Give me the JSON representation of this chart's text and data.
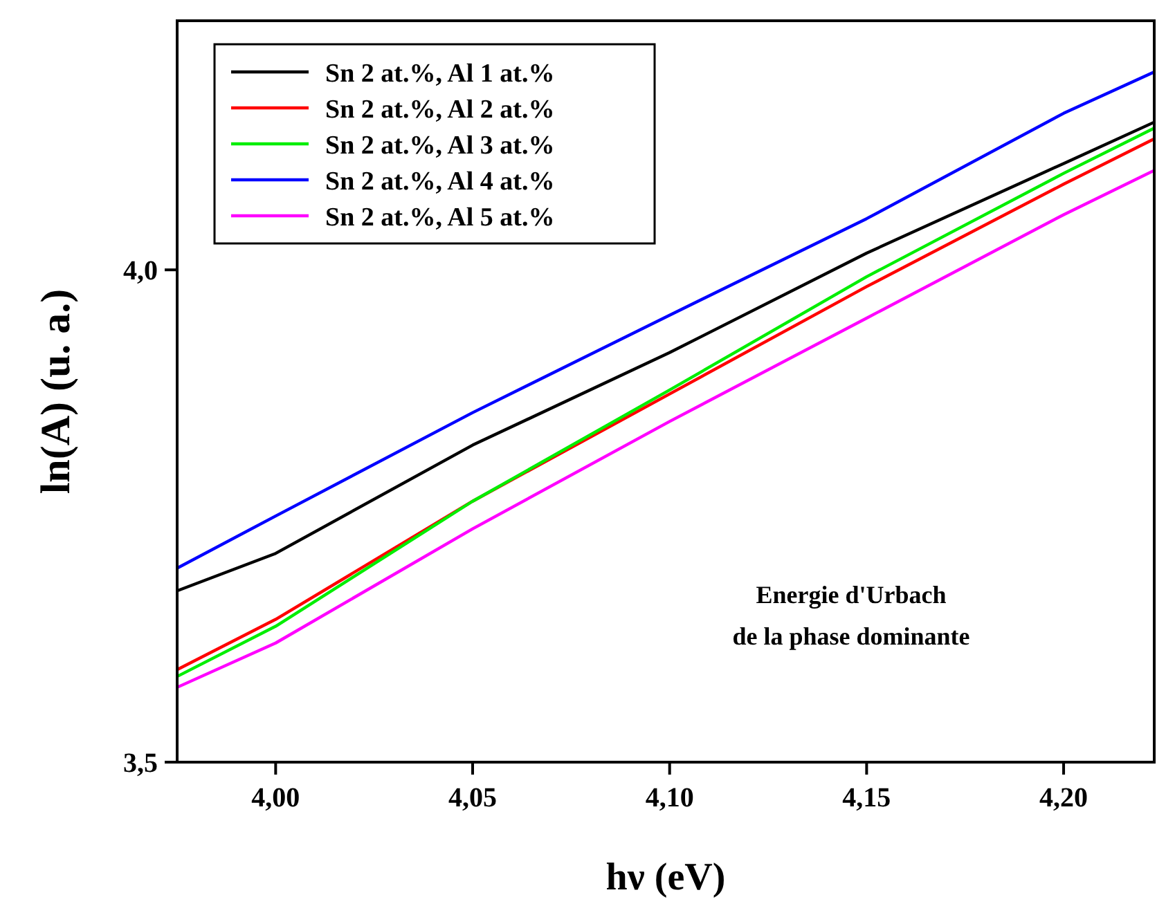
{
  "chart_data": {
    "type": "line",
    "xlabel": "hν (eV)",
    "ylabel": "ln(A) (u. a.)",
    "xlim": [
      3.975,
      4.223
    ],
    "ylim": [
      3.5,
      4.253
    ],
    "xticks": [
      {
        "value": 4.0,
        "label": "4,00"
      },
      {
        "value": 4.05,
        "label": "4,05"
      },
      {
        "value": 4.1,
        "label": "4,10"
      },
      {
        "value": 4.15,
        "label": "4,15"
      },
      {
        "value": 4.2,
        "label": "4,20"
      }
    ],
    "yticks": [
      {
        "value": 3.5,
        "label": "3,5"
      },
      {
        "value": 4.0,
        "label": "4,0"
      }
    ],
    "legend": "top left",
    "grid": false,
    "line_style": "solid",
    "annotations": [
      "Energie d'Urbach\nde la phase dominante"
    ],
    "x": [
      3.975,
      4.0,
      4.05,
      4.1,
      4.15,
      4.2,
      4.223
    ],
    "series": [
      {
        "name": "Sn 2 at.%, Al 1 at.%",
        "color": "#000000",
        "values": [
          3.674,
          3.712,
          3.822,
          3.916,
          4.017,
          4.108,
          4.15
        ]
      },
      {
        "name": "Sn 2 at.%, Al 2 at.%",
        "color": "#ff0000",
        "values": [
          3.594,
          3.645,
          3.765,
          3.874,
          3.983,
          4.087,
          4.133
        ]
      },
      {
        "name": "Sn 2 at.%, Al 3 at.%",
        "color": "#00ee00",
        "values": [
          3.587,
          3.638,
          3.765,
          3.878,
          3.993,
          4.098,
          4.144
        ]
      },
      {
        "name": "Sn 2 at.%, Al 4 at.%",
        "color": "#0000ff",
        "values": [
          3.697,
          3.75,
          3.855,
          3.954,
          4.052,
          4.159,
          4.201
        ]
      },
      {
        "name": "Sn 2 at.%, Al 5 at.%",
        "color": "#ff00ff",
        "values": [
          3.576,
          3.621,
          3.737,
          3.846,
          3.951,
          4.056,
          4.101
        ]
      }
    ]
  }
}
